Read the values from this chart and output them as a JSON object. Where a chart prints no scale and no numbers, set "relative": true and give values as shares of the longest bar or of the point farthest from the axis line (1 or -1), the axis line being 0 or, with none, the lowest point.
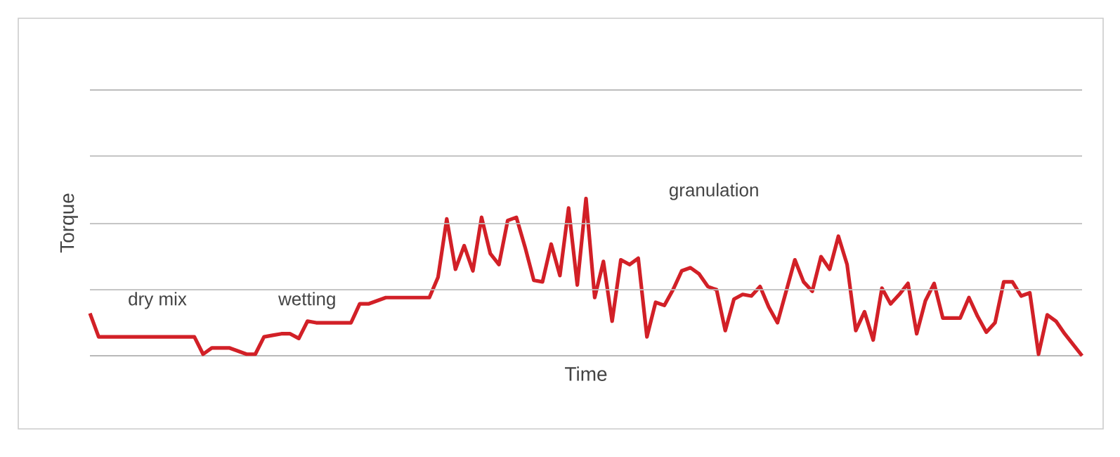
{
  "chart_data": {
    "type": "line",
    "relative": true,
    "ref_lines": [
      {
        "axis": "y",
        "value": 0.42,
        "color": "#bdbdbd"
      },
      {
        "axis": "y",
        "value": 0.84,
        "color": "#bdbdbd"
      },
      {
        "axis": "y",
        "value": 1.27,
        "color": "#bdbdbd"
      },
      {
        "axis": "y",
        "value": 1.69,
        "color": "#bdbdbd"
      }
    ],
    "xlabel": "Time",
    "ylabel": "Torque",
    "color": "#d22027",
    "annotations": [
      "dry mix",
      "wetting",
      "granulation"
    ],
    "categories": [
      null,
      null,
      null,
      null,
      null,
      null,
      null,
      null,
      null,
      null,
      null,
      null,
      null,
      null,
      null,
      null,
      null,
      null,
      null,
      null,
      null,
      null,
      null,
      null,
      null,
      null,
      null,
      null,
      null,
      null,
      null,
      null,
      null,
      null,
      null,
      null,
      null,
      null,
      null,
      null,
      null,
      null,
      null,
      null,
      null,
      null,
      null,
      null,
      null,
      null,
      null,
      null,
      null,
      null,
      null,
      null,
      null,
      null,
      null,
      null,
      null,
      null,
      null,
      null,
      null,
      null,
      null,
      null,
      null,
      null,
      null,
      null,
      null,
      null,
      null,
      null,
      null,
      null,
      null,
      null,
      null,
      null,
      null,
      null,
      null,
      null,
      null,
      null,
      null,
      null,
      null,
      null,
      null,
      null,
      null,
      null,
      null,
      null,
      null,
      null,
      null,
      null,
      null,
      null,
      null,
      null,
      null,
      null,
      null,
      null,
      null,
      null,
      null,
      null,
      null
    ],
    "values": [
      0.27,
      0.12,
      0.12,
      0.12,
      0.12,
      0.12,
      0.12,
      0.12,
      0.12,
      0.12,
      0.12,
      0.12,
      0.12,
      0.01,
      0.05,
      0.05,
      0.05,
      0.03,
      0.01,
      0.01,
      0.12,
      0.13,
      0.14,
      0.14,
      0.11,
      0.22,
      0.21,
      0.21,
      0.21,
      0.21,
      0.21,
      0.33,
      0.33,
      0.35,
      0.37,
      0.37,
      0.37,
      0.37,
      0.37,
      0.37,
      0.5,
      0.87,
      0.55,
      0.7,
      0.54,
      0.88,
      0.65,
      0.58,
      0.86,
      0.88,
      0.69,
      0.48,
      0.47,
      0.71,
      0.51,
      0.94,
      0.45,
      1,
      0.37,
      0.6,
      0.22,
      0.61,
      0.58,
      0.62,
      0.12,
      0.34,
      0.32,
      0.42,
      0.54,
      0.56,
      0.52,
      0.44,
      0.42,
      0.16,
      0.36,
      0.39,
      0.38,
      0.44,
      0.31,
      0.21,
      0.41,
      0.61,
      0.47,
      0.41,
      0.63,
      0.55,
      0.76,
      0.58,
      0.16,
      0.28,
      0.1,
      0.43,
      0.33,
      0.39,
      0.46,
      0.14,
      0.35,
      0.46,
      0.24,
      0.24,
      0.24,
      0.37,
      0.25,
      0.15,
      0.21,
      0.47,
      0.47,
      0.38,
      0.4,
      0.01,
      0.26,
      0.22,
      0.14,
      0.07,
      0
    ]
  }
}
